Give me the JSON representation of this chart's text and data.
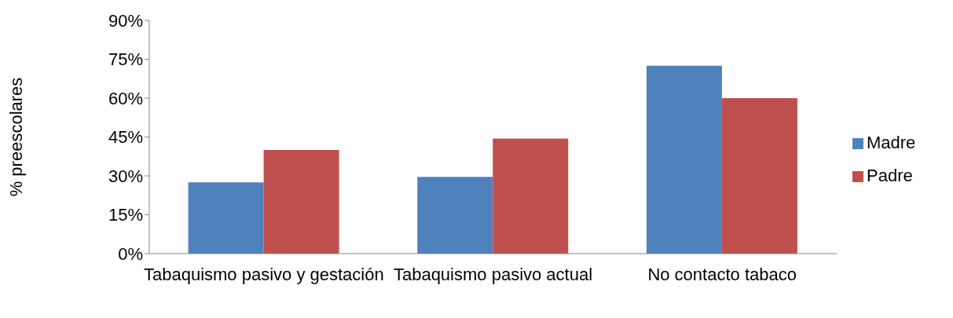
{
  "chart_data": {
    "type": "bar",
    "ylabel": "%  preescolares",
    "categories": [
      "Tabaquismo pasivo y gestación",
      "Tabaquismo pasivo actual",
      "No contacto tabaco"
    ],
    "series": [
      {
        "name": "Madre",
        "color": "#4f81bd",
        "values": [
          27.5,
          29.6,
          72.5
        ]
      },
      {
        "name": "Padre",
        "color": "#c0504d",
        "values": [
          40,
          44.4,
          60
        ]
      }
    ],
    "ylim": [
      0,
      90
    ],
    "yticks": [
      {
        "value": 0,
        "label": "0%"
      },
      {
        "value": 15,
        "label": "15%"
      },
      {
        "value": 30,
        "label": "30%"
      },
      {
        "value": 45,
        "label": "45%"
      },
      {
        "value": 60,
        "label": "60%"
      },
      {
        "value": 75,
        "label": "75%"
      },
      {
        "value": 90,
        "label": "90%"
      }
    ],
    "grid": false,
    "legend": "right"
  }
}
